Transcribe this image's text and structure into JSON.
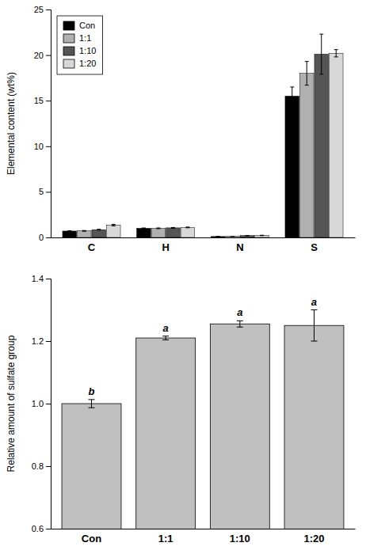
{
  "chart_data": [
    {
      "type": "bar",
      "categories": [
        "C",
        "H",
        "N",
        "S"
      ],
      "series": [
        {
          "name": "Con",
          "color": "#000000",
          "values": [
            0.7,
            1.0,
            0.1,
            15.5
          ],
          "errors": [
            0.04,
            0.04,
            0.01,
            1.0
          ]
        },
        {
          "name": "1:1",
          "color": "#b0b0b0",
          "values": [
            0.72,
            1.0,
            0.12,
            18.0
          ],
          "errors": [
            0.04,
            0.04,
            0.01,
            1.3
          ]
        },
        {
          "name": "1:10",
          "color": "#555555",
          "values": [
            0.85,
            1.05,
            0.2,
            20.1
          ],
          "errors": [
            0.04,
            0.04,
            0.02,
            2.2
          ]
        },
        {
          "name": "1:20",
          "color": "#d8d8d8",
          "values": [
            1.35,
            1.1,
            0.22,
            20.2
          ],
          "errors": [
            0.08,
            0.04,
            0.02,
            0.4
          ]
        }
      ],
      "ylabel": "Elemental content (wt%)",
      "ylim": [
        0,
        25
      ],
      "yticks": [
        0,
        5,
        10,
        15,
        20,
        25
      ],
      "legend": "upper left"
    },
    {
      "type": "bar",
      "categories": [
        "Con",
        "1:1",
        "1:10",
        "1:20"
      ],
      "values": [
        1.0,
        1.21,
        1.255,
        1.25
      ],
      "errors": [
        0.013,
        0.006,
        0.01,
        0.05
      ],
      "color": "#c0c0c0",
      "ylabel": "Relative amount of sulfate group",
      "ylim": [
        0.6,
        1.4
      ],
      "yticks": [
        0.6,
        0.8,
        {
          "value": 1.0,
          "label": "1.0"
        },
        1.2,
        1.4
      ],
      "annotations": [
        "b",
        "a",
        "a",
        "a"
      ]
    }
  ]
}
